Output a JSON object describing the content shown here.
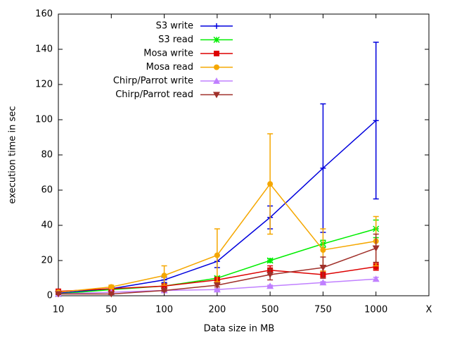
{
  "chart_data": {
    "type": "line",
    "xlabel": "Data size in MB",
    "ylabel": "execution time in sec",
    "categories": [
      "10",
      "50",
      "100",
      "200",
      "500",
      "750",
      "1000",
      "X"
    ],
    "ylim": [
      0,
      160
    ],
    "yticks": [
      0,
      20,
      40,
      60,
      80,
      100,
      120,
      140,
      160
    ],
    "legend": "top-left",
    "series": [
      {
        "name": "S3 write",
        "color": "#0000dd",
        "marker": "plus",
        "values": [
          1.5,
          4,
          9,
          19.5,
          44.5,
          72.5,
          99.5,
          null
        ],
        "errors": [
          0.5,
          0.5,
          1.5,
          3.5,
          6.5,
          36.5,
          44.5,
          null
        ]
      },
      {
        "name": "S3 read",
        "color": "#00ee00",
        "marker": "star",
        "values": [
          1,
          3.5,
          5.5,
          10,
          20,
          29.5,
          38,
          null
        ],
        "errors": [
          0.3,
          0.5,
          0.5,
          1,
          1,
          2,
          5,
          null
        ]
      },
      {
        "name": "Mosa write",
        "color": "#dd0000",
        "marker": "square",
        "values": [
          2.5,
          4,
          5.5,
          9,
          14.5,
          12,
          16.5,
          null
        ],
        "errors": [
          0.5,
          0.5,
          1,
          1.5,
          2.5,
          2,
          2,
          null
        ]
      },
      {
        "name": "Mosa read",
        "color": "#f5a700",
        "marker": "circle",
        "values": [
          2,
          5,
          11.5,
          23,
          63.5,
          26,
          31,
          null
        ],
        "errors": [
          0.5,
          1,
          5.5,
          15,
          28.5,
          12,
          14,
          null
        ]
      },
      {
        "name": "Chirp/Parrot write",
        "color": "#c080ff",
        "marker": "triangle",
        "values": [
          1,
          2,
          3,
          3.5,
          5.5,
          7.5,
          9.5,
          null
        ],
        "errors": [
          0.3,
          0.3,
          0.5,
          0.5,
          0.5,
          0.5,
          1,
          null
        ]
      },
      {
        "name": "Chirp/Parrot read",
        "color": "#a0302a",
        "marker": "triangle-down",
        "values": [
          1,
          1,
          3,
          6,
          12,
          16,
          27,
          null
        ],
        "errors": [
          0.3,
          0.3,
          0.5,
          1,
          3,
          6,
          8,
          null
        ]
      }
    ]
  }
}
